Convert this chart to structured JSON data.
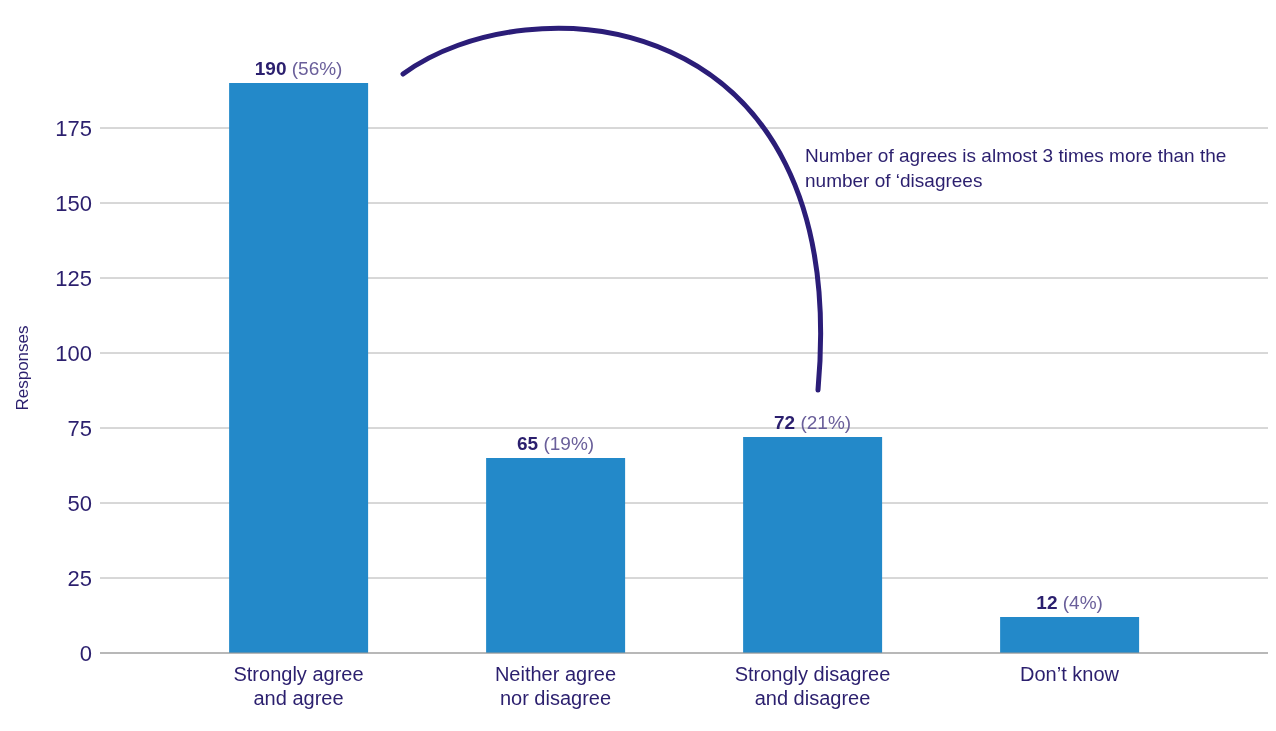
{
  "chart_data": {
    "type": "bar",
    "ylabel": "Responses",
    "categories": [
      "Strongly agree and agree",
      "Neither agree nor disagree",
      "Strongly disagree and disagree",
      "Don’t know"
    ],
    "values": [
      190,
      65,
      72,
      12
    ],
    "value_labels": [
      "190 (56%)",
      "65 (19%)",
      "72 (21%)",
      "12 (4%)"
    ],
    "color": "#2389c9",
    "ylim": [
      0,
      190
    ],
    "yticks": [
      0,
      25,
      50,
      75,
      100,
      125,
      150,
      175
    ],
    "grid": "y",
    "annotations": [
      "Number of agrees is almost 3 times more than the number of ‘disagrees"
    ]
  }
}
